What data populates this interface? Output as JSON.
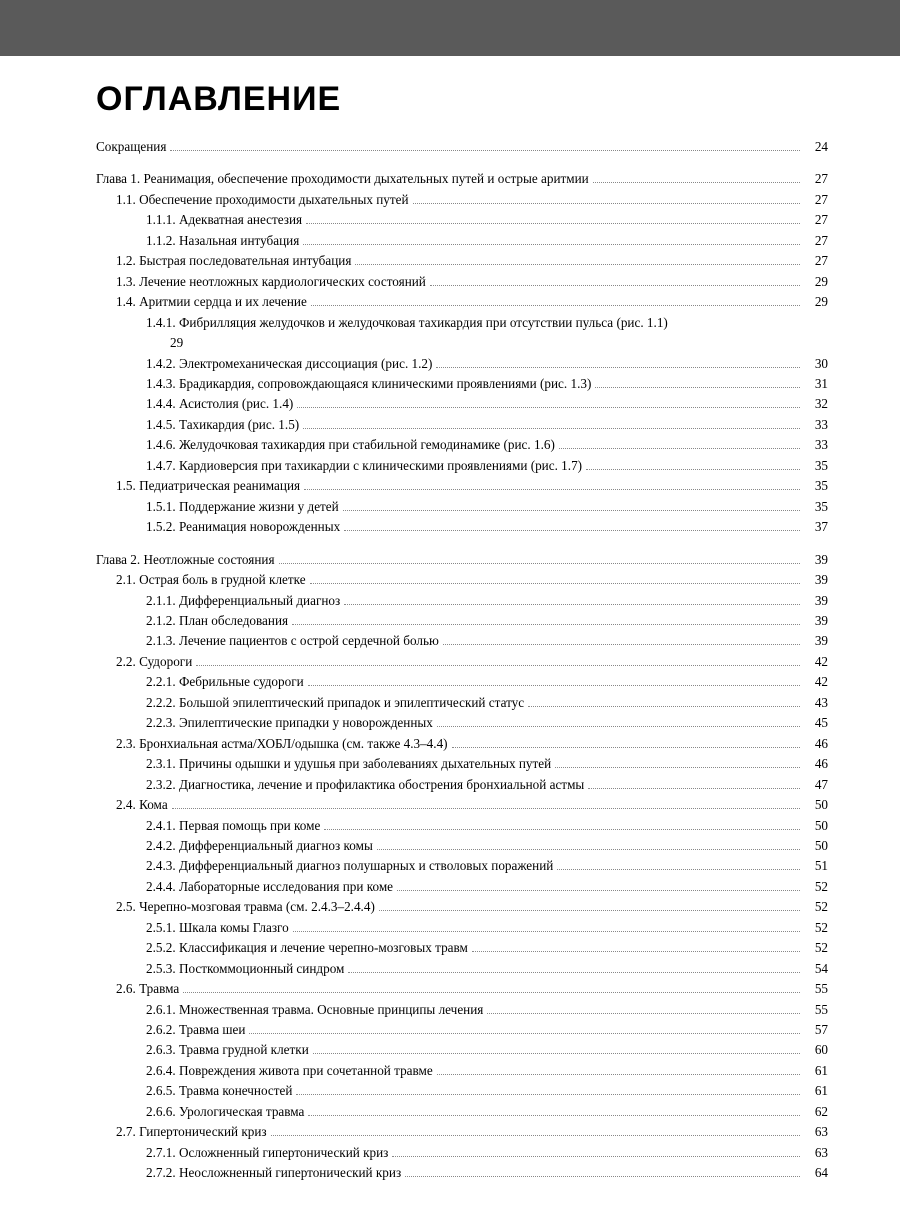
{
  "title": "ОГЛАВЛЕНИЕ",
  "colors": {
    "header_bar": "#5a5a5a",
    "page_bg": "#ffffff",
    "body_bg": "#e8e8e8",
    "text": "#000000",
    "leader": "#888888"
  },
  "typography": {
    "title_font": "Arial",
    "title_weight": 900,
    "title_size_pt": 26,
    "body_font": "Georgia",
    "body_size_pt": 10
  },
  "entries": [
    {
      "indent": 0,
      "label": "Сокращения",
      "page": "24",
      "gap_after": true
    },
    {
      "indent": 0,
      "label": "Глава 1. Реанимация, обеспечение проходимости дыхательных путей и острые аритмии",
      "page": "27"
    },
    {
      "indent": 1,
      "label": "1.1. Обеспечение проходимости дыхательных путей",
      "page": "27"
    },
    {
      "indent": 2,
      "label": "1.1.1. Адекватная анестезия",
      "page": "27"
    },
    {
      "indent": 2,
      "label": "1.1.2. Назальная интубация",
      "page": "27"
    },
    {
      "indent": 1,
      "label": "1.2. Быстрая последовательная интубация",
      "page": "27"
    },
    {
      "indent": 1,
      "label": "1.3. Лечение неотложных кардиологических состояний",
      "page": "29"
    },
    {
      "indent": 1,
      "label": "1.4. Аритмии сердца и их лечение",
      "page": "29"
    },
    {
      "indent": 2,
      "label": "1.4.1. Фибрилляция желудочков и желудочковая тахикардия при отсутствии пульса (рис. 1.1)",
      "page": "",
      "wrap": "29"
    },
    {
      "indent": 2,
      "label": "1.4.2. Электромеханическая диссоциация (рис. 1.2)",
      "page": "30"
    },
    {
      "indent": 2,
      "label": "1.4.3. Брадикардия, сопровождающаяся клиническими проявлениями (рис. 1.3)",
      "page": "31"
    },
    {
      "indent": 2,
      "label": "1.4.4. Асистолия (рис. 1.4)",
      "page": "32"
    },
    {
      "indent": 2,
      "label": "1.4.5. Тахикардия (рис. 1.5)",
      "page": "33"
    },
    {
      "indent": 2,
      "label": "1.4.6. Желудочковая тахикардия при стабильной гемодинамике (рис. 1.6)",
      "page": "33"
    },
    {
      "indent": 2,
      "label": "1.4.7. Кардиоверсия при тахикардии с клиническими проявлениями (рис. 1.7)",
      "page": "35"
    },
    {
      "indent": 1,
      "label": "1.5. Педиатрическая реанимация",
      "page": "35"
    },
    {
      "indent": 2,
      "label": "1.5.1. Поддержание жизни у детей",
      "page": "35"
    },
    {
      "indent": 2,
      "label": "1.5.2. Реанимация новорожденных",
      "page": "37",
      "gap_after": true
    },
    {
      "indent": 0,
      "label": "Глава 2. Неотложные состояния",
      "page": "39"
    },
    {
      "indent": 1,
      "label": "2.1. Острая боль в грудной клетке",
      "page": "39"
    },
    {
      "indent": 2,
      "label": "2.1.1. Дифференциальный диагноз",
      "page": "39"
    },
    {
      "indent": 2,
      "label": "2.1.2. План обследования",
      "page": "39"
    },
    {
      "indent": 2,
      "label": "2.1.3. Лечение пациентов с острой сердечной болью",
      "page": "39"
    },
    {
      "indent": 1,
      "label": "2.2. Судороги",
      "page": "42"
    },
    {
      "indent": 2,
      "label": "2.2.1. Фебрильные судороги",
      "page": "42"
    },
    {
      "indent": 2,
      "label": "2.2.2. Большой эпилептический припадок и эпилептический статус",
      "page": "43"
    },
    {
      "indent": 2,
      "label": "2.2.3. Эпилептические припадки у новорожденных",
      "page": "45"
    },
    {
      "indent": 1,
      "label": "2.3. Бронхиальная астма/ХОБЛ/одышка (см. также 4.3–4.4)",
      "page": "46"
    },
    {
      "indent": 2,
      "label": "2.3.1. Причины одышки и удушья при заболеваниях дыхательных путей",
      "page": "46"
    },
    {
      "indent": 2,
      "label": "2.3.2. Диагностика, лечение и профилактика обострения бронхиальной астмы",
      "page": "47"
    },
    {
      "indent": 1,
      "label": "2.4. Кома",
      "page": "50"
    },
    {
      "indent": 2,
      "label": "2.4.1. Первая помощь при коме",
      "page": "50"
    },
    {
      "indent": 2,
      "label": "2.4.2. Дифференциальный диагноз комы",
      "page": "50"
    },
    {
      "indent": 2,
      "label": "2.4.3. Дифференциальный диагноз полушарных и стволовых поражений",
      "page": "51"
    },
    {
      "indent": 2,
      "label": "2.4.4. Лабораторные исследования при коме",
      "page": "52"
    },
    {
      "indent": 1,
      "label": "2.5. Черепно-мозговая травма (см. 2.4.3–2.4.4)",
      "page": "52"
    },
    {
      "indent": 2,
      "label": "2.5.1. Шкала комы Глазго",
      "page": "52"
    },
    {
      "indent": 2,
      "label": "2.5.2. Классификация и лечение черепно-мозговых травм",
      "page": "52"
    },
    {
      "indent": 2,
      "label": "2.5.3. Посткоммоционный синдром",
      "page": "54"
    },
    {
      "indent": 1,
      "label": "2.6. Травма",
      "page": "55"
    },
    {
      "indent": 2,
      "label": "2.6.1. Множественная травма. Основные принципы лечения",
      "page": "55"
    },
    {
      "indent": 2,
      "label": "2.6.2. Травма шеи",
      "page": "57"
    },
    {
      "indent": 2,
      "label": "2.6.3. Травма грудной клетки",
      "page": "60"
    },
    {
      "indent": 2,
      "label": "2.6.4. Повреждения живота при сочетанной травме",
      "page": "61"
    },
    {
      "indent": 2,
      "label": "2.6.5. Травма конечностей",
      "page": "61"
    },
    {
      "indent": 2,
      "label": "2.6.6. Урологическая травма",
      "page": "62"
    },
    {
      "indent": 1,
      "label": "2.7. Гипертонический криз",
      "page": "63"
    },
    {
      "indent": 2,
      "label": "2.7.1. Осложненный гипертонический криз",
      "page": "63"
    },
    {
      "indent": 2,
      "label": "2.7.2. Неосложненный гипертонический криз",
      "page": "64"
    }
  ]
}
